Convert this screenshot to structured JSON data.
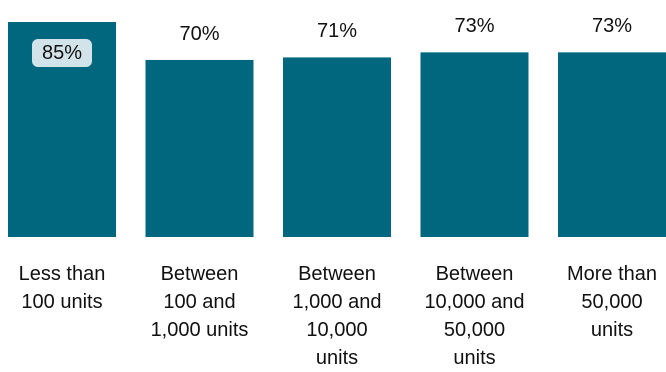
{
  "chart_data": {
    "type": "bar",
    "categories": [
      "Less than\n100 units",
      "Between\n100 and\n1,000 units",
      "Between\n1,000 and\n10,000\nunits",
      "Between\n10,000 and\n50,000\nunits",
      "More than\n50,000\nunits"
    ],
    "values": [
      85,
      70,
      71,
      73,
      73
    ],
    "value_labels": [
      "85%",
      "70%",
      "71%",
      "73%",
      "73%"
    ],
    "ylim": [
      0,
      85
    ],
    "grid": false,
    "bar_color": "#00677f",
    "highlight_label_bg": "#d3e3ea",
    "title": "",
    "xlabel": "",
    "ylabel": ""
  }
}
